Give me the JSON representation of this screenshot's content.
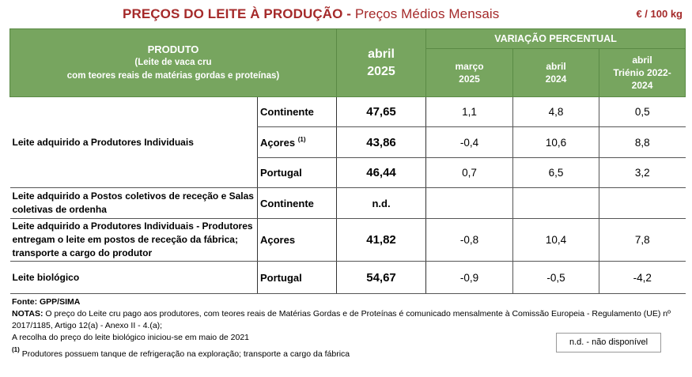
{
  "title": "PREÇOS DO LEITE À PRODUÇÃO",
  "title_sep": " - ",
  "subtitle": "Preços Médios Mensais",
  "unit": "€ / 100 kg",
  "header": {
    "produto": "PRODUTO",
    "produto_sub1": "(Leite de vaca cru",
    "produto_sub2": "com teores reais de matérias gordas e proteínas)",
    "period_line1": "abril",
    "period_line2": "2025",
    "variacao": "VARIAÇÃO PERCENTUAL",
    "cols": [
      {
        "line1": "março",
        "line2": "2025"
      },
      {
        "line1": "abril",
        "line2": "2024"
      },
      {
        "line1": "abril",
        "line2": "Triénio 2022-",
        "line3": "2024"
      }
    ]
  },
  "rows": {
    "individuais": {
      "product": "Leite adquirido a Produtores Individuais",
      "continente": {
        "region": "Continente",
        "price": "47,65",
        "v1": "1,1",
        "v2": "4,8",
        "v3": "0,5"
      },
      "acores": {
        "region": "Açores",
        "note": "(1)",
        "price": "43,86",
        "v1": "-0,4",
        "v2": "10,6",
        "v3": "8,8"
      },
      "portugal": {
        "region": "Portugal",
        "price": "46,44",
        "v1": "0,7",
        "v2": "6,5",
        "v3": "3,2"
      }
    },
    "postos": {
      "product": "Leite adquirido a Postos coletivos de receção e Salas coletivas de ordenha",
      "region": "Continente",
      "price": "n.d.",
      "v1": "",
      "v2": "",
      "v3": ""
    },
    "fabrica": {
      "product": "Leite adquirido a Produtores Individuais - Produtores entregam o leite em postos de receção da fábrica; transporte a cargo do produtor",
      "region": "Açores",
      "price": "41,82",
      "v1": "-0,8",
      "v2": "10,4",
      "v3": "7,8"
    },
    "biologico": {
      "product": "Leite biológico",
      "region": "Portugal",
      "price": "54,67",
      "v1": "-0,9",
      "v2": "-0,5",
      "v3": "-4,2"
    }
  },
  "notes": {
    "fonte": "Fonte: GPP/SIMA",
    "notas_label": "NOTAS:",
    "notas_text": " O preço do Leite cru pago aos produtores, com teores reais de Matérias Gordas e de Proteínas é comunicado mensalmente à Comissão Europeia - Regulamento (UE) nº 2017/1185, Artigo 12(a) - Anexo II - 4.(a);",
    "biologico_note": "A recolha do preço do leite biológico iniciou-se em maio de 2021",
    "footnote_mark": "(1)",
    "footnote_text": " Produtores possuem tanque de refrigeração na exploração; transporte a cargo da fábrica",
    "nd_legend": "n.d. - não disponível"
  },
  "colors": {
    "header_green": "#77a55f",
    "title_red": "#a52a2a"
  }
}
